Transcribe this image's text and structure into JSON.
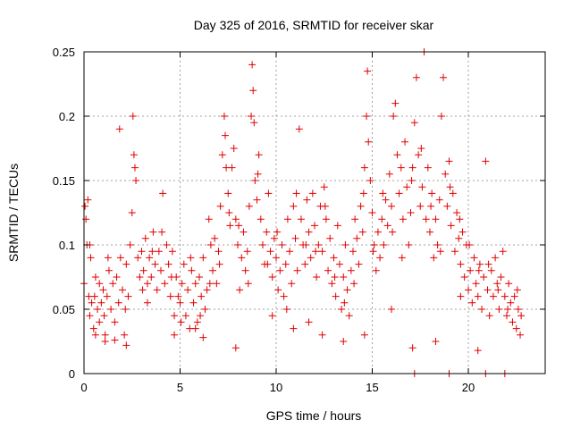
{
  "chart_data": {
    "type": "scatter",
    "title": "Day 325 of 2016, SRMTID for receiver skar",
    "xlabel": "GPS time / hours",
    "ylabel": "SRMTID / TECUs",
    "xlim": [
      0,
      24
    ],
    "ylim": [
      0,
      0.25
    ],
    "xticks": [
      0,
      5,
      10,
      15,
      20
    ],
    "xtick_labels": [
      "0",
      "5",
      "10",
      "15",
      "20"
    ],
    "yticks": [
      0,
      0.05,
      0.1,
      0.15,
      0.2,
      0.25
    ],
    "ytick_labels": [
      "0",
      "0.05",
      "0.1",
      "0.15",
      "0.2",
      "0.25"
    ],
    "grid": true,
    "marker": "plus",
    "color": "#e00000",
    "series": [
      {
        "name": "SRMTID",
        "points": [
          [
            0.0,
            0.07
          ],
          [
            0.05,
            0.13
          ],
          [
            0.1,
            0.12
          ],
          [
            0.15,
            0.1
          ],
          [
            0.2,
            0.135
          ],
          [
            0.25,
            0.06
          ],
          [
            0.3,
            0.045
          ],
          [
            0.35,
            0.09
          ],
          [
            0.4,
            0.055
          ],
          [
            0.5,
            0.035
          ],
          [
            0.55,
            0.06
          ],
          [
            0.6,
            0.075
          ],
          [
            0.7,
            0.05
          ],
          [
            0.8,
            0.04
          ],
          [
            0.9,
            0.055
          ],
          [
            1.0,
            0.065
          ],
          [
            1.05,
            0.045
          ],
          [
            1.1,
            0.03
          ],
          [
            1.2,
            0.06
          ],
          [
            1.3,
            0.08
          ],
          [
            1.4,
            0.05
          ],
          [
            1.5,
            0.07
          ],
          [
            1.6,
            0.04
          ],
          [
            1.7,
            0.075
          ],
          [
            1.8,
            0.055
          ],
          [
            1.9,
            0.09
          ],
          [
            2.0,
            0.065
          ],
          [
            2.1,
            0.03
          ],
          [
            2.2,
            0.085
          ],
          [
            2.3,
            0.06
          ],
          [
            2.4,
            0.1
          ],
          [
            2.5,
            0.125
          ],
          [
            2.55,
            0.2
          ],
          [
            2.6,
            0.17
          ],
          [
            2.7,
            0.15
          ],
          [
            2.8,
            0.09
          ],
          [
            2.9,
            0.075
          ],
          [
            3.0,
            0.095
          ],
          [
            3.1,
            0.08
          ],
          [
            3.2,
            0.105
          ],
          [
            3.3,
            0.07
          ],
          [
            3.4,
            0.09
          ],
          [
            3.5,
            0.075
          ],
          [
            3.6,
            0.11
          ],
          [
            3.7,
            0.085
          ],
          [
            3.8,
            0.065
          ],
          [
            3.9,
            0.095
          ],
          [
            4.0,
            0.08
          ],
          [
            4.1,
            0.14
          ],
          [
            4.2,
            0.07
          ],
          [
            4.3,
            0.1
          ],
          [
            4.4,
            0.085
          ],
          [
            4.5,
            0.06
          ],
          [
            4.6,
            0.095
          ],
          [
            4.7,
            0.045
          ],
          [
            4.8,
            0.075
          ],
          [
            4.9,
            0.06
          ],
          [
            5.0,
            0.055
          ],
          [
            5.1,
            0.07
          ],
          [
            5.2,
            0.085
          ],
          [
            5.3,
            0.045
          ],
          [
            5.4,
            0.065
          ],
          [
            5.5,
            0.035
          ],
          [
            5.6,
            0.08
          ],
          [
            5.7,
            0.055
          ],
          [
            5.8,
            0.07
          ],
          [
            5.9,
            0.04
          ],
          [
            6.0,
            0.075
          ],
          [
            6.1,
            0.06
          ],
          [
            6.2,
            0.09
          ],
          [
            6.3,
            0.05
          ],
          [
            6.4,
            0.065
          ],
          [
            6.5,
            0.12
          ],
          [
            6.6,
            0.1
          ],
          [
            6.7,
            0.08
          ],
          [
            6.8,
            0.105
          ],
          [
            6.9,
            0.07
          ],
          [
            7.0,
            0.095
          ],
          [
            7.1,
            0.13
          ],
          [
            7.2,
            0.17
          ],
          [
            7.3,
            0.2
          ],
          [
            7.35,
            0.185
          ],
          [
            7.4,
            0.16
          ],
          [
            7.5,
            0.14
          ],
          [
            7.6,
            0.115
          ],
          [
            7.7,
            0.16
          ],
          [
            7.8,
            0.175
          ],
          [
            7.9,
            0.12
          ],
          [
            8.0,
            0.1
          ],
          [
            8.1,
            0.065
          ],
          [
            8.2,
            0.09
          ],
          [
            8.3,
            0.11
          ],
          [
            8.4,
            0.08
          ],
          [
            8.5,
            0.095
          ],
          [
            8.6,
            0.13
          ],
          [
            8.7,
            0.2
          ],
          [
            8.75,
            0.24
          ],
          [
            8.8,
            0.22
          ],
          [
            8.85,
            0.195
          ],
          [
            8.9,
            0.15
          ],
          [
            9.0,
            0.135
          ],
          [
            9.1,
            0.17
          ],
          [
            9.2,
            0.12
          ],
          [
            9.3,
            0.1
          ],
          [
            9.4,
            0.085
          ],
          [
            9.5,
            0.11
          ],
          [
            9.6,
            0.14
          ],
          [
            9.7,
            0.095
          ],
          [
            9.8,
            0.075
          ],
          [
            9.9,
            0.105
          ],
          [
            10.0,
            0.09
          ],
          [
            10.1,
            0.065
          ],
          [
            10.2,
            0.08
          ],
          [
            10.3,
            0.1
          ],
          [
            10.4,
            0.06
          ],
          [
            10.5,
            0.085
          ],
          [
            10.6,
            0.12
          ],
          [
            10.7,
            0.095
          ],
          [
            10.8,
            0.07
          ],
          [
            10.9,
            0.13
          ],
          [
            11.0,
            0.105
          ],
          [
            11.1,
            0.08
          ],
          [
            11.2,
            0.19
          ],
          [
            11.3,
            0.12
          ],
          [
            11.4,
            0.1
          ],
          [
            11.5,
            0.085
          ],
          [
            11.6,
            0.135
          ],
          [
            11.7,
            0.11
          ],
          [
            11.8,
            0.09
          ],
          [
            11.9,
            0.14
          ],
          [
            12.0,
            0.115
          ],
          [
            12.1,
            0.075
          ],
          [
            12.2,
            0.1
          ],
          [
            12.3,
            0.13
          ],
          [
            12.4,
            0.095
          ],
          [
            12.5,
            0.145
          ],
          [
            12.6,
            0.12
          ],
          [
            12.7,
            0.08
          ],
          [
            12.8,
            0.105
          ],
          [
            12.9,
            0.07
          ],
          [
            13.0,
            0.09
          ],
          [
            13.1,
            0.06
          ],
          [
            13.2,
            0.115
          ],
          [
            13.3,
            0.085
          ],
          [
            13.4,
            0.05
          ],
          [
            13.5,
            0.075
          ],
          [
            13.6,
            0.1
          ],
          [
            13.7,
            0.065
          ],
          [
            13.8,
            0.045
          ],
          [
            13.9,
            0.08
          ],
          [
            14.0,
            0.095
          ],
          [
            14.1,
            0.12
          ],
          [
            14.2,
            0.105
          ],
          [
            14.3,
            0.085
          ],
          [
            14.4,
            0.13
          ],
          [
            14.5,
            0.11
          ],
          [
            14.6,
            0.16
          ],
          [
            14.7,
            0.2
          ],
          [
            14.75,
            0.235
          ],
          [
            14.8,
            0.18
          ],
          [
            14.9,
            0.15
          ],
          [
            15.0,
            0.125
          ],
          [
            15.1,
            0.1
          ],
          [
            15.2,
            0.08
          ],
          [
            15.3,
            0.11
          ],
          [
            15.4,
            0.09
          ],
          [
            15.5,
            0.12
          ],
          [
            15.6,
            0.1
          ],
          [
            15.7,
            0.135
          ],
          [
            15.8,
            0.115
          ],
          [
            15.9,
            0.155
          ],
          [
            16.0,
            0.13
          ],
          [
            16.1,
            0.2
          ],
          [
            16.2,
            0.21
          ],
          [
            16.3,
            0.17
          ],
          [
            16.4,
            0.14
          ],
          [
            16.5,
            0.16
          ],
          [
            16.6,
            0.12
          ],
          [
            16.7,
            0.18
          ],
          [
            16.8,
            0.145
          ],
          [
            16.9,
            0.1
          ],
          [
            17.0,
            0.125
          ],
          [
            17.1,
            0.16
          ],
          [
            17.2,
            0.195
          ],
          [
            17.3,
            0.23
          ],
          [
            17.4,
            0.17
          ],
          [
            17.5,
            0.13
          ],
          [
            17.6,
            0.145
          ],
          [
            17.7,
            0.25
          ],
          [
            17.8,
            0.12
          ],
          [
            17.9,
            0.16
          ],
          [
            18.0,
            0.11
          ],
          [
            18.1,
            0.14
          ],
          [
            18.2,
            0.09
          ],
          [
            18.3,
            0.12
          ],
          [
            18.4,
            0.1
          ],
          [
            18.5,
            0.135
          ],
          [
            18.6,
            0.2
          ],
          [
            18.7,
            0.23
          ],
          [
            18.8,
            0.155
          ],
          [
            18.9,
            0.13
          ],
          [
            19.0,
            0.165
          ],
          [
            19.1,
            0.115
          ],
          [
            19.2,
            0.14
          ],
          [
            19.3,
            0.095
          ],
          [
            19.4,
            0.125
          ],
          [
            19.5,
            0.105
          ],
          [
            19.6,
            0.085
          ],
          [
            19.7,
            0.11
          ],
          [
            19.8,
            0.075
          ],
          [
            19.9,
            0.1
          ],
          [
            20.0,
            0.065
          ],
          [
            20.1,
            0.08
          ],
          [
            20.2,
            0.055
          ],
          [
            20.3,
            0.09
          ],
          [
            20.4,
            0.07
          ],
          [
            20.5,
            0.06
          ],
          [
            20.6,
            0.085
          ],
          [
            20.7,
            0.05
          ],
          [
            20.8,
            0.075
          ],
          [
            20.9,
            0.165
          ],
          [
            21.0,
            0.065
          ],
          [
            21.1,
            0.045
          ],
          [
            21.2,
            0.08
          ],
          [
            21.3,
            0.06
          ],
          [
            21.4,
            0.09
          ],
          [
            21.5,
            0.07
          ],
          [
            21.6,
            0.05
          ],
          [
            21.7,
            0.075
          ],
          [
            21.8,
            0.095
          ],
          [
            21.9,
            0.06
          ],
          [
            22.0,
            0.045
          ],
          [
            22.1,
            0.07
          ],
          [
            22.2,
            0.055
          ],
          [
            22.3,
            0.04
          ],
          [
            22.4,
            0.06
          ],
          [
            22.5,
            0.035
          ],
          [
            22.6,
            0.05
          ],
          [
            22.7,
            0.03
          ],
          [
            22.75,
            0.045
          ],
          [
            0.3,
            0.1
          ],
          [
            0.8,
            0.07
          ],
          [
            1.25,
            0.09
          ],
          [
            1.85,
            0.19
          ],
          [
            2.15,
            0.05
          ],
          [
            2.65,
            0.16
          ],
          [
            3.05,
            0.065
          ],
          [
            3.55,
            0.095
          ],
          [
            4.05,
            0.11
          ],
          [
            4.55,
            0.075
          ],
          [
            5.05,
            0.04
          ],
          [
            5.55,
            0.09
          ],
          [
            6.05,
            0.045
          ],
          [
            6.55,
            0.07
          ],
          [
            7.05,
            0.085
          ],
          [
            7.55,
            0.125
          ],
          [
            8.05,
            0.115
          ],
          [
            8.55,
            0.07
          ],
          [
            9.05,
            0.155
          ],
          [
            9.55,
            0.085
          ],
          [
            10.05,
            0.11
          ],
          [
            10.55,
            0.05
          ],
          [
            11.05,
            0.14
          ],
          [
            11.55,
            0.1
          ],
          [
            12.05,
            0.095
          ],
          [
            12.55,
            0.13
          ],
          [
            13.05,
            0.075
          ],
          [
            13.55,
            0.055
          ],
          [
            14.05,
            0.07
          ],
          [
            14.55,
            0.14
          ],
          [
            15.05,
            0.095
          ],
          [
            15.55,
            0.14
          ],
          [
            16.05,
            0.11
          ],
          [
            16.55,
            0.09
          ],
          [
            17.05,
            0.15
          ],
          [
            17.55,
            0.175
          ],
          [
            18.05,
            0.13
          ],
          [
            18.55,
            0.095
          ],
          [
            19.05,
            0.145
          ],
          [
            19.55,
            0.12
          ],
          [
            20.05,
            0.1
          ],
          [
            20.55,
            0.08
          ],
          [
            21.05,
            0.085
          ],
          [
            21.55,
            0.065
          ],
          [
            22.05,
            0.05
          ],
          [
            22.55,
            0.065
          ],
          [
            17.1,
            0.02
          ],
          [
            18.3,
            0.025
          ],
          [
            20.5,
            0.018
          ],
          [
            7.9,
            0.02
          ],
          [
            17.2,
            0.0
          ],
          [
            19.0,
            0.0
          ],
          [
            20.9,
            0.0
          ],
          [
            21.9,
            0.0
          ],
          [
            2.2,
            0.022
          ],
          [
            1.6,
            0.026
          ],
          [
            3.3,
            0.055
          ],
          [
            4.7,
            0.03
          ],
          [
            6.2,
            0.028
          ],
          [
            12.4,
            0.03
          ],
          [
            13.5,
            0.025
          ],
          [
            14.6,
            0.03
          ],
          [
            9.8,
            0.045
          ],
          [
            10.9,
            0.035
          ],
          [
            11.7,
            0.04
          ],
          [
            16.0,
            0.05
          ],
          [
            19.6,
            0.06
          ],
          [
            0.6,
            0.03
          ],
          [
            1.1,
            0.025
          ],
          [
            5.8,
            0.035
          ]
        ]
      }
    ]
  }
}
